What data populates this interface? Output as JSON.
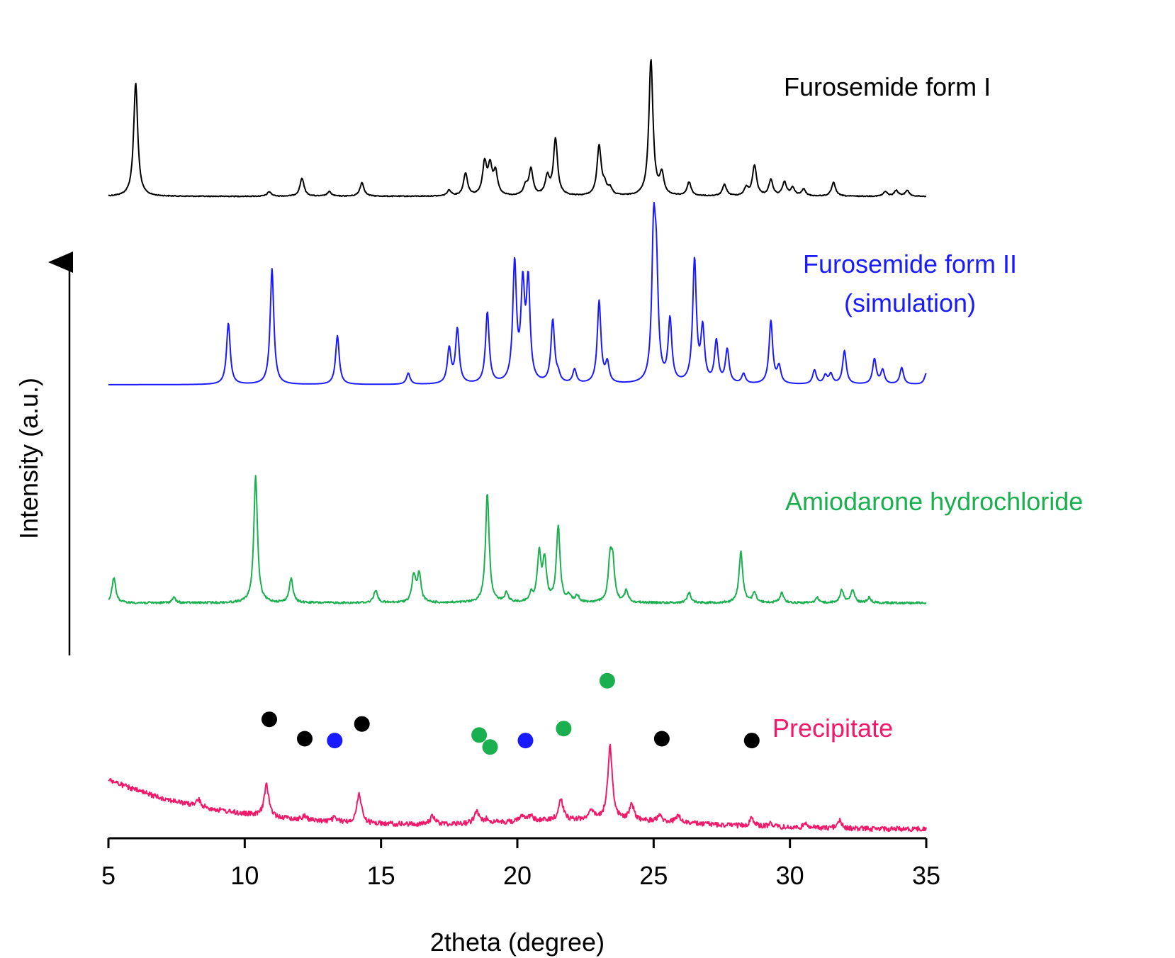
{
  "chart_data": {
    "type": "line",
    "stacked_offset": true,
    "xlabel": "2theta (degree)",
    "ylabel": "Intensity (a.u.)",
    "xlim": [
      5,
      35
    ],
    "xticks": [
      5,
      10,
      15,
      20,
      25,
      30,
      35
    ],
    "yticks_shown": false,
    "grid": false,
    "series": [
      {
        "name": "Furosemide form I",
        "color": "#000000",
        "baseline_fraction": 0.03,
        "peaks": [
          [
            6.0,
            1.0
          ],
          [
            10.9,
            0.04
          ],
          [
            12.1,
            0.16
          ],
          [
            13.1,
            0.04
          ],
          [
            14.3,
            0.12
          ],
          [
            17.5,
            0.05
          ],
          [
            18.1,
            0.2
          ],
          [
            18.8,
            0.28
          ],
          [
            19.0,
            0.24
          ],
          [
            19.2,
            0.2
          ],
          [
            20.3,
            0.08
          ],
          [
            20.5,
            0.23
          ],
          [
            21.1,
            0.16
          ],
          [
            21.4,
            0.5
          ],
          [
            23.0,
            0.44
          ],
          [
            23.2,
            0.08
          ],
          [
            23.4,
            0.06
          ],
          [
            24.9,
            1.2
          ],
          [
            25.3,
            0.18
          ],
          [
            26.3,
            0.12
          ],
          [
            27.6,
            0.1
          ],
          [
            28.4,
            0.07
          ],
          [
            28.7,
            0.27
          ],
          [
            29.3,
            0.14
          ],
          [
            29.8,
            0.12
          ],
          [
            30.1,
            0.07
          ],
          [
            30.5,
            0.06
          ],
          [
            31.6,
            0.12
          ],
          [
            33.5,
            0.04
          ],
          [
            33.9,
            0.05
          ],
          [
            34.3,
            0.05
          ]
        ]
      },
      {
        "name": "Furosemide form II\n(simulation)",
        "color": "#1a1aff",
        "baseline_fraction": 0.0,
        "peaks": [
          [
            9.4,
            0.44
          ],
          [
            11.0,
            0.83
          ],
          [
            13.4,
            0.35
          ],
          [
            16.0,
            0.08
          ],
          [
            17.5,
            0.25
          ],
          [
            17.8,
            0.39
          ],
          [
            18.9,
            0.51
          ],
          [
            19.9,
            0.85
          ],
          [
            20.2,
            0.66
          ],
          [
            20.4,
            0.7
          ],
          [
            21.3,
            0.45
          ],
          [
            21.5,
            0.05
          ],
          [
            22.1,
            0.1
          ],
          [
            23.0,
            0.59
          ],
          [
            23.3,
            0.14
          ],
          [
            25.0,
            1.0
          ],
          [
            25.1,
            0.69
          ],
          [
            25.6,
            0.45
          ],
          [
            26.5,
            0.88
          ],
          [
            26.8,
            0.38
          ],
          [
            27.3,
            0.3
          ],
          [
            27.7,
            0.24
          ],
          [
            28.3,
            0.07
          ],
          [
            29.3,
            0.45
          ],
          [
            29.6,
            0.12
          ],
          [
            30.9,
            0.1
          ],
          [
            31.3,
            0.06
          ],
          [
            31.5,
            0.07
          ],
          [
            32.0,
            0.24
          ],
          [
            33.1,
            0.18
          ],
          [
            33.4,
            0.1
          ],
          [
            34.1,
            0.12
          ],
          [
            35.0,
            0.08
          ]
        ]
      },
      {
        "name": "Amiodarone hydrochloride",
        "color": "#1bb04f",
        "baseline_fraction": 0.05,
        "peaks": [
          [
            5.2,
            0.2
          ],
          [
            7.4,
            0.04
          ],
          [
            10.4,
            0.98
          ],
          [
            11.7,
            0.19
          ],
          [
            14.8,
            0.1
          ],
          [
            16.2,
            0.21
          ],
          [
            16.4,
            0.22
          ],
          [
            18.9,
            0.85
          ],
          [
            19.6,
            0.07
          ],
          [
            20.5,
            0.06
          ],
          [
            20.8,
            0.37
          ],
          [
            21.0,
            0.32
          ],
          [
            21.5,
            0.59
          ],
          [
            21.9,
            0.05
          ],
          [
            22.2,
            0.05
          ],
          [
            23.4,
            0.3
          ],
          [
            23.5,
            0.28
          ],
          [
            24.0,
            0.09
          ],
          [
            26.3,
            0.08
          ],
          [
            28.2,
            0.4
          ],
          [
            28.7,
            0.08
          ],
          [
            29.7,
            0.08
          ],
          [
            31.0,
            0.04
          ],
          [
            31.9,
            0.1
          ],
          [
            32.3,
            0.1
          ],
          [
            32.9,
            0.04
          ]
        ]
      },
      {
        "name": "Precipitate",
        "color": "#f2196b",
        "baseline_fraction": 0.0,
        "peaks": [
          [
            8.3,
            0.08
          ],
          [
            10.8,
            0.38
          ],
          [
            12.2,
            0.05
          ],
          [
            13.3,
            0.05
          ],
          [
            14.2,
            0.35
          ],
          [
            16.9,
            0.1
          ],
          [
            18.5,
            0.14
          ],
          [
            18.9,
            0.05
          ],
          [
            20.2,
            0.08
          ],
          [
            20.5,
            0.06
          ],
          [
            21.6,
            0.25
          ],
          [
            22.7,
            0.12
          ],
          [
            23.4,
            0.88
          ],
          [
            24.2,
            0.18
          ],
          [
            25.2,
            0.07
          ],
          [
            25.9,
            0.08
          ],
          [
            28.6,
            0.1
          ],
          [
            29.3,
            0.05
          ],
          [
            30.6,
            0.06
          ],
          [
            31.8,
            0.1
          ]
        ]
      }
    ],
    "markers": [
      {
        "x": 10.9,
        "color": "#000000",
        "level": 0.73
      },
      {
        "x": 12.2,
        "color": "#000000",
        "level": 0.52
      },
      {
        "x": 13.3,
        "color": "#1a1aff",
        "level": 0.5
      },
      {
        "x": 14.3,
        "color": "#000000",
        "level": 0.68
      },
      {
        "x": 18.6,
        "color": "#1bb04f",
        "level": 0.56
      },
      {
        "x": 19.0,
        "color": "#1bb04f",
        "level": 0.43
      },
      {
        "x": 20.3,
        "color": "#1a1aff",
        "level": 0.5
      },
      {
        "x": 21.7,
        "color": "#1bb04f",
        "level": 0.63
      },
      {
        "x": 23.3,
        "color": "#1bb04f",
        "level": 1.15
      },
      {
        "x": 25.3,
        "color": "#000000",
        "level": 0.52
      },
      {
        "x": 28.6,
        "color": "#000000",
        "level": 0.5
      }
    ]
  },
  "labels": {
    "xlabel": "2theta (degree)",
    "ylabel": "Intensity (a.u.)",
    "series_form1": "Furosemide form I",
    "series_form2_line1": "Furosemide form II",
    "series_form2_line2": "(simulation)",
    "series_amio": "Amiodarone hydrochloride",
    "series_precip": "Precipitate"
  }
}
